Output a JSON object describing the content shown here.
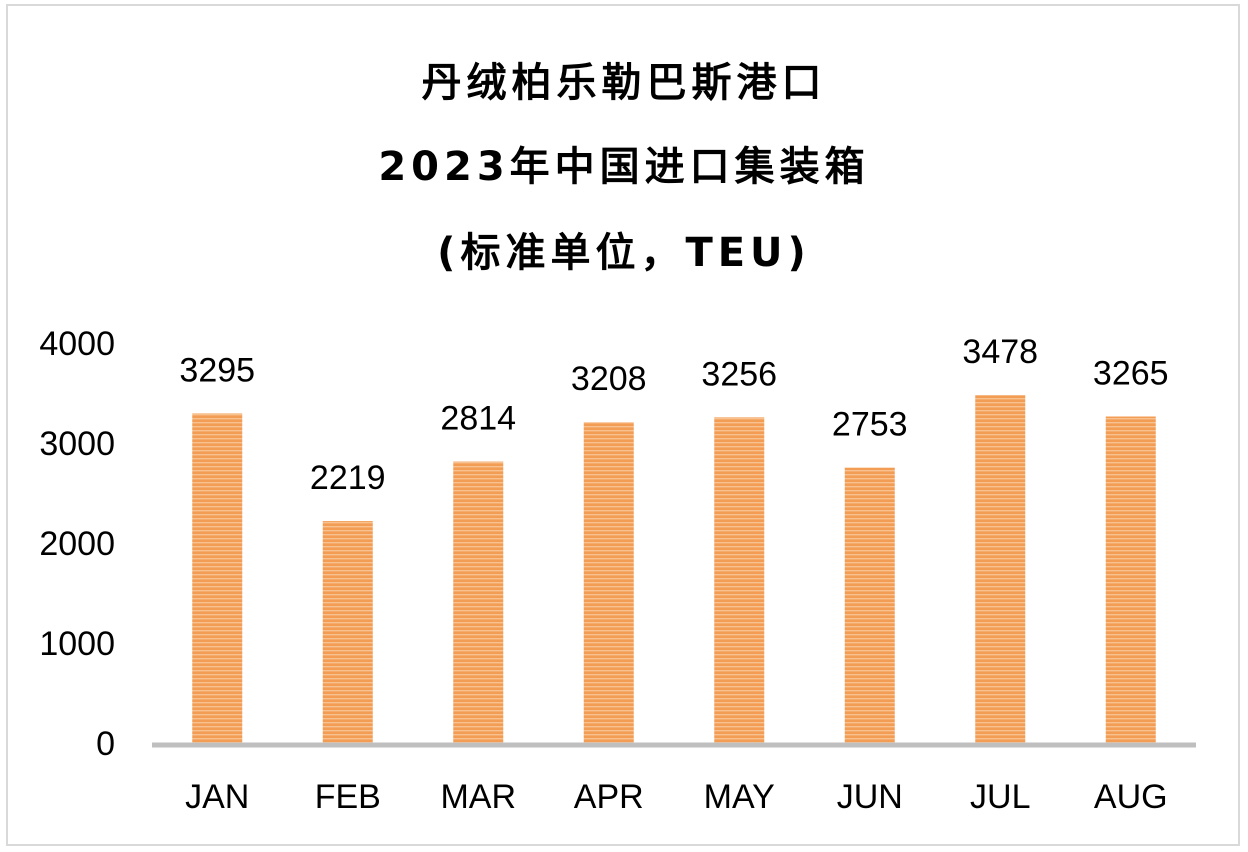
{
  "title_lines": [
    "丹绒柏乐勒巴斯港口",
    "2023年中国进口集装箱",
    "(标准单位，TEU)"
  ],
  "colors": {
    "bar": "#f39c53",
    "bar_stripe": "#f8c190",
    "axis": "#bfbfbf",
    "border": "#d9d9d9"
  },
  "chart_data": {
    "type": "bar",
    "title": "丹绒柏乐勒巴斯港口 2023年中国进口集装箱 (标准单位，TEU)",
    "categories": [
      "JAN",
      "FEB",
      "MAR",
      "APR",
      "MAY",
      "JUN",
      "JUL",
      "AUG"
    ],
    "values": [
      3295,
      2219,
      2814,
      3208,
      3256,
      2753,
      3478,
      3265
    ],
    "data_labels": [
      "3295",
      "2219",
      "2814",
      "3208",
      "3256",
      "2753",
      "3478",
      "3265"
    ],
    "ylim": [
      0,
      4000
    ],
    "yticks": [
      0,
      1000,
      2000,
      3000,
      4000
    ],
    "ytick_labels": [
      "0",
      "1000",
      "2000",
      "3000",
      "4000"
    ],
    "grid": false,
    "legend": "none"
  }
}
